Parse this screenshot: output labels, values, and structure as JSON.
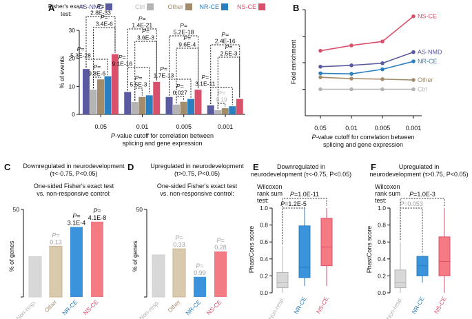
{
  "chart_data": [
    {
      "panel": "A",
      "type": "bar",
      "title": "",
      "header_label": "Fisher's exact test:",
      "xlabel_prefix": "P",
      "xlabel_line1": "-value cutoff for correlation between",
      "xlabel_line2": "splicing and gene expression",
      "ylabel": "% of events",
      "ylim": [
        0,
        30
      ],
      "yticks": [
        0,
        10,
        20,
        30
      ],
      "categories": [
        "0.05",
        "0.01",
        "0.005",
        "0.001"
      ],
      "series": [
        {
          "name": "AS-NMD",
          "color": "#5a5aa0",
          "values": [
            16.2,
            8.0,
            6.2,
            3.2
          ]
        },
        {
          "name": "Ctrl",
          "color": "#b4b4b4",
          "values": [
            8.8,
            4.4,
            3.5,
            1.5
          ]
        },
        {
          "name": "Other",
          "color": "#a38c6c",
          "values": [
            12.5,
            6.2,
            4.5,
            2.2
          ]
        },
        {
          "name": "NR-CE",
          "color": "#2a7fbf",
          "values": [
            13.6,
            6.8,
            5.5,
            2.9
          ]
        },
        {
          "name": "NS-CE",
          "color": "#d9506a",
          "values": [
            21.5,
            11.6,
            8.8,
            5.5
          ]
        }
      ],
      "annotations": [
        {
          "category": "0.05",
          "pair": [
            "AS-NMD",
            "NR-CE"
          ],
          "prefix": "P=",
          "value": "5.3E-28"
        },
        {
          "category": "0.05",
          "pair": [
            "Ctrl",
            "NS-CE"
          ],
          "prefix": "P=",
          "value": "3.4E-6"
        },
        {
          "category": "0.05",
          "pair": [
            "AS-NMD",
            "NS-CE"
          ],
          "prefix": "P=",
          "value": "2.8E-33"
        },
        {
          "category": "0.05",
          "pair": [
            "Ctrl",
            "Other"
          ],
          "prefix": "P=",
          "value": "9.8E-6"
        },
        {
          "category": "0.01",
          "pair": [
            "AS-NMD",
            "NR-CE"
          ],
          "prefix": "P=",
          "value": "9.1E-16"
        },
        {
          "category": "0.01",
          "pair": [
            "Ctrl",
            "NS-CE"
          ],
          "prefix": "P=",
          "value": "3.6E-3"
        },
        {
          "category": "0.01",
          "pair": [
            "AS-NMD",
            "NS-CE"
          ],
          "prefix": "P=",
          "value": "1.4E-21"
        },
        {
          "category": "0.01",
          "pair": [
            "Ctrl",
            "Other"
          ],
          "prefix": "P=",
          "value": "5.5E-3"
        },
        {
          "category": "0.005",
          "pair": [
            "AS-NMD",
            "NR-CE"
          ],
          "prefix": "P=",
          "value": "1.7E-13"
        },
        {
          "category": "0.005",
          "pair": [
            "Ctrl",
            "NS-CE"
          ],
          "prefix": "P=",
          "value": "9.6E-4"
        },
        {
          "category": "0.005",
          "pair": [
            "AS-NMD",
            "NS-CE"
          ],
          "prefix": "P=",
          "value": "5.2E-18"
        },
        {
          "category": "0.005",
          "pair": [
            "Ctrl",
            "Other"
          ],
          "prefix": "P=",
          "value": "0.027"
        },
        {
          "category": "0.001",
          "pair": [
            "AS-NMD",
            "NR-CE"
          ],
          "prefix": "P=",
          "value": "3.1E-11"
        },
        {
          "category": "0.001",
          "pair": [
            "Ctrl",
            "NS-CE"
          ],
          "prefix": "P=",
          "value": "2.5E-3"
        },
        {
          "category": "0.001",
          "pair": [
            "AS-NMD",
            "NS-CE"
          ],
          "prefix": "P=",
          "value": "2.4E-16"
        },
        {
          "category": "0.001",
          "pair": [
            "Ctrl",
            "Other"
          ],
          "prefix": "P=",
          "value": "0.19",
          "color": "#b4b4b4"
        }
      ]
    },
    {
      "panel": "B",
      "type": "line",
      "ylabel": "Fold enrichment",
      "xlabel_prefix": "P",
      "xlabel_line1": "-value cutoff for correlation between",
      "xlabel_line2": "splicing and gene expression",
      "categories": [
        "0.05",
        "0.01",
        "0.005",
        "0.001"
      ],
      "ylim": [
        0,
        4
      ],
      "series": [
        {
          "name": "NS-CE",
          "color": "#d9506a",
          "values": [
            2.45,
            2.65,
            2.8,
            3.75
          ]
        },
        {
          "name": "AS-NMD",
          "color": "#5a5aa0",
          "values": [
            1.85,
            1.9,
            1.98,
            2.4
          ]
        },
        {
          "name": "NR-CE",
          "color": "#2a7fbf",
          "values": [
            1.6,
            1.58,
            1.75,
            2.05
          ]
        },
        {
          "name": "Other",
          "color": "#a38c6c",
          "values": [
            1.45,
            1.4,
            1.38,
            1.35
          ]
        },
        {
          "name": "Ctrl",
          "color": "#b4b4b4",
          "values": [
            1.0,
            1.0,
            1.0,
            1.0
          ]
        }
      ]
    },
    {
      "panel": "C",
      "type": "bar",
      "title_line1": "Downregulated in neurodevelopment",
      "title_line2": "(τ<-0.75, P<0.05)",
      "subtitle_line1": "One-sided Fisher's exact test",
      "subtitle_line2": "vs. non-responsive control:",
      "ylabel": "% of genes",
      "ylim": [
        0,
        50
      ],
      "yticks": [
        0,
        50
      ],
      "categories": [
        "Non-resp.",
        "Other",
        "NR-CE",
        "NS-CE"
      ],
      "values": [
        23,
        29,
        40,
        43
      ],
      "colors": [
        "#d8d8d8",
        "#d9c9ad",
        "#3b94db",
        "#f47b83"
      ],
      "label_colors": [
        "#b4b4b4",
        "#a38c6c",
        "#2a7fbf",
        "#d9506a"
      ],
      "data_labels": [
        null,
        {
          "prefix": "P=",
          "value": "0.13",
          "color": "#a0a0a0"
        },
        {
          "prefix": "P=",
          "value": "3.1E-4",
          "color": "#111111"
        },
        {
          "prefix": "P=",
          "value": "4.1E-8",
          "color": "#111111"
        }
      ]
    },
    {
      "panel": "D",
      "type": "bar",
      "title_line1": "Upregulated in neurodevelopment",
      "title_line2": "(τ>0.75, P<0.05)",
      "subtitle_line1": "One-sided Fisher's exact test",
      "subtitle_line2": "vs. non-responsive control:",
      "ylabel": "% of genes",
      "ylim": [
        0,
        50
      ],
      "yticks": [
        0,
        50
      ],
      "categories": [
        "Non-resp.",
        "Other",
        "NR-CE",
        "NS-CE"
      ],
      "values": [
        24,
        27.5,
        11.5,
        26
      ],
      "colors": [
        "#d8d8d8",
        "#d9c9ad",
        "#3b94db",
        "#f47b83"
      ],
      "label_colors": [
        "#b4b4b4",
        "#a38c6c",
        "#2a7fbf",
        "#d9506a"
      ],
      "data_labels": [
        null,
        {
          "prefix": "P=",
          "value": "0.33",
          "color": "#a0a0a0"
        },
        {
          "prefix": "P=",
          "value": "0.99",
          "color": "#a0a0a0"
        },
        {
          "prefix": "P=",
          "value": "0.28",
          "color": "#a0a0a0"
        }
      ]
    },
    {
      "panel": "E",
      "type": "box",
      "title_line1": "Downregulated in",
      "title_line2": "neurodevelopment (τ<-0.75, P<0.05)",
      "test_label": [
        "Wilcoxon",
        "rank sum",
        "test:"
      ],
      "ylabel": "PhastCons score",
      "ylim": [
        0,
        1.0
      ],
      "yticks": [
        0.0,
        0.2,
        0.4,
        0.6,
        0.8,
        1.0
      ],
      "categories": [
        "Non-resp.",
        "NR-CE",
        "NS-CE"
      ],
      "boxes": [
        {
          "min": 0.0,
          "q1": 0.06,
          "median": 0.12,
          "q3": 0.24,
          "max": 0.55
        },
        {
          "min": 0.08,
          "q1": 0.18,
          "median": 0.3,
          "q3": 0.79,
          "max": 1.0
        },
        {
          "min": 0.08,
          "q1": 0.32,
          "median": 0.54,
          "q3": 0.88,
          "max": 1.0
        }
      ],
      "colors": [
        "#d8d8d8",
        "#3b94db",
        "#f47b83"
      ],
      "edge_colors": [
        "#b4b4b4",
        "#2a7fbf",
        "#d9506a"
      ],
      "label_colors": [
        "#b4b4b4",
        "#2a7fbf",
        "#d9506a"
      ],
      "brackets": [
        {
          "pair": [
            "Non-resp.",
            "NR-CE"
          ],
          "prefix": "P=",
          "value": "1.2E-5",
          "color": "#111111"
        },
        {
          "pair": [
            "Non-resp.",
            "NS-CE"
          ],
          "prefix": "P=",
          "value": "1.0E-11",
          "color": "#111111"
        }
      ]
    },
    {
      "panel": "F",
      "type": "box",
      "title_line1": "Upregulated in",
      "title_line2": "neurodevelopment (τ>0.75, P<0.05)",
      "test_label": [
        "Wilcoxon",
        "rank sum",
        "test:"
      ],
      "ylabel": "PhastCons score",
      "ylim": [
        0,
        1.0
      ],
      "yticks": [
        0.0,
        0.2,
        0.4,
        0.6,
        0.8,
        1.0
      ],
      "categories": [
        "Non-resp.",
        "NR-CE",
        "NS-CE"
      ],
      "boxes": [
        {
          "min": 0.0,
          "q1": 0.06,
          "median": 0.12,
          "q3": 0.27,
          "max": 0.6
        },
        {
          "min": 0.12,
          "q1": 0.2,
          "median": 0.32,
          "q3": 0.43,
          "max": 0.44
        },
        {
          "min": 0.0,
          "q1": 0.2,
          "median": 0.37,
          "q3": 0.66,
          "max": 1.0
        }
      ],
      "colors": [
        "#d8d8d8",
        "#3b94db",
        "#f47b83"
      ],
      "edge_colors": [
        "#b4b4b4",
        "#2a7fbf",
        "#d9506a"
      ],
      "label_colors": [
        "#b4b4b4",
        "#2a7fbf",
        "#d9506a"
      ],
      "brackets": [
        {
          "pair": [
            "Non-resp.",
            "NR-CE"
          ],
          "prefix": "P=",
          "value": "0.053",
          "color": "#a0a0a0"
        },
        {
          "pair": [
            "Non-resp.",
            "NS-CE"
          ],
          "prefix": "P=",
          "value": "1.0E-3",
          "color": "#111111"
        }
      ]
    }
  ]
}
